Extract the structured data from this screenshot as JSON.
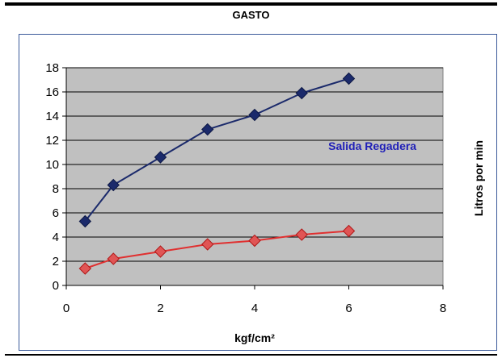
{
  "chart_data": {
    "type": "line",
    "title": "GASTO",
    "xlabel": "kgf/cm²",
    "ylabel": "Litros por min",
    "xlim": [
      0,
      8
    ],
    "ylim": [
      0,
      18
    ],
    "xticks": [
      0,
      2,
      4,
      6,
      8
    ],
    "yticks": [
      0,
      2,
      4,
      6,
      8,
      10,
      12,
      14,
      16,
      18
    ],
    "grid": "horizontal",
    "plot_background": "#c0c0c0",
    "series": [
      {
        "color": "#1b2a6b",
        "marker": "diamond",
        "x": [
          0.4,
          1,
          2,
          3,
          4,
          5,
          6
        ],
        "y": [
          5.3,
          8.3,
          10.6,
          12.9,
          14.1,
          15.9,
          17.1
        ]
      },
      {
        "color": "#e03030",
        "marker": "diamond",
        "x": [
          0.4,
          1,
          2,
          3,
          4,
          5,
          6
        ],
        "y": [
          1.4,
          2.2,
          2.8,
          3.4,
          3.7,
          4.2,
          4.5
        ]
      }
    ],
    "annotations": [
      {
        "text": "Salida Regadera",
        "x": 6.5,
        "y": 11.2,
        "color": "#1f1fb8"
      }
    ]
  }
}
